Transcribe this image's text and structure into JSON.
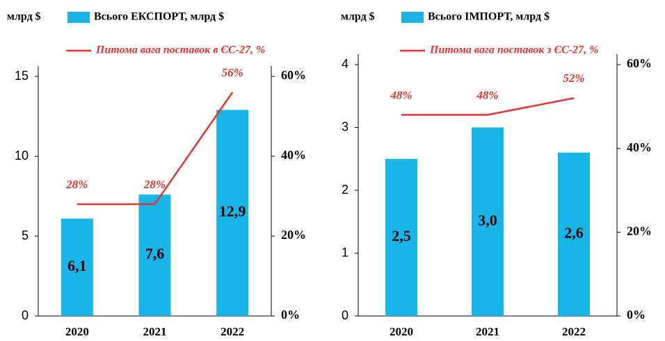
{
  "chart_data": [
    {
      "type": "bar",
      "y_label": "млрд $",
      "categories": [
        "2020",
        "2021",
        "2022"
      ],
      "series": [
        {
          "name": "Всього ЕКСПОРТ, млрд $",
          "color": "#17b5e8",
          "values": [
            6.1,
            7.6,
            12.9
          ],
          "value_labels": [
            "6,1",
            "7,6",
            "12,9"
          ]
        },
        {
          "name": "Питома вага поставок в ЄС-27, %",
          "type": "line",
          "axis": "y2",
          "color": "#e8322f",
          "values": [
            28,
            28,
            56
          ],
          "value_labels": [
            "28%",
            "28%",
            "56%"
          ]
        }
      ],
      "ylim": [
        0,
        15
      ],
      "yticks": [
        0,
        5,
        10,
        15
      ],
      "y2lim": [
        0,
        60
      ],
      "y2ticks": [
        {
          "value": 0,
          "label": "0%"
        },
        {
          "value": 20,
          "label": "20%"
        },
        {
          "value": 40,
          "label": "40%"
        },
        {
          "value": 60,
          "label": "60%"
        }
      ]
    },
    {
      "type": "bar",
      "y_label": "млрд $",
      "categories": [
        "2020",
        "2021",
        "2022"
      ],
      "series": [
        {
          "name": "Всього ІМПОРТ, млрд $",
          "color": "#17b5e8",
          "values": [
            2.5,
            3.0,
            2.6
          ],
          "value_labels": [
            "2,5",
            "3,0",
            "2,6"
          ]
        },
        {
          "name": "Питома вага поставок з ЄС-27, %",
          "type": "line",
          "axis": "y2",
          "color": "#e8322f",
          "values": [
            48,
            48,
            52
          ],
          "value_labels": [
            "48%",
            "48%",
            "52%"
          ]
        }
      ],
      "ylim": [
        0,
        4
      ],
      "yticks": [
        0,
        1,
        2,
        3,
        4
      ],
      "y2lim": [
        0,
        60
      ],
      "y2ticks": [
        {
          "value": 0,
          "label": "0%"
        },
        {
          "value": 20,
          "label": "20%"
        },
        {
          "value": 40,
          "label": "40%"
        },
        {
          "value": 60,
          "label": "60%"
        }
      ]
    }
  ]
}
